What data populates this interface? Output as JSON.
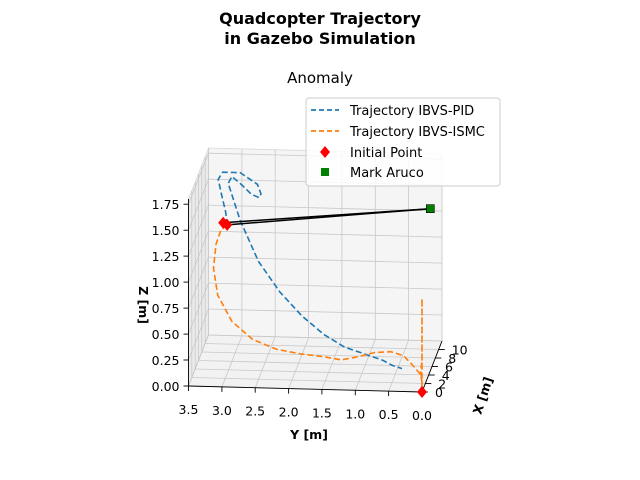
{
  "chart_data": {
    "type": "line",
    "projection": "3d",
    "suptitle_lines": [
      "Quadcopter Trajectory",
      "in Gazebo Simulation"
    ],
    "title": "Anomaly",
    "xlabel": "X [m]",
    "ylabel": "Y [m]",
    "zlabel": "Z [m]",
    "x_ticks": [
      "0",
      "2",
      "4",
      "6",
      "8",
      "10"
    ],
    "y_ticks": [
      "3.5",
      "3.0",
      "2.5",
      "2.0",
      "1.5",
      "1.0",
      "0.5",
      "0.0"
    ],
    "z_ticks": [
      "0.00",
      "0.25",
      "0.50",
      "0.75",
      "1.00",
      "1.25",
      "1.50",
      "1.75"
    ],
    "xlim": [
      0,
      12
    ],
    "ylim": [
      0,
      3.5
    ],
    "zlim": [
      0,
      1.8
    ],
    "grid": true,
    "legend_position": "upper-right",
    "colors": {
      "pid": "#1f77b4",
      "ismc": "#ff7f0e",
      "initial": "#ff0000",
      "marker": "#008000",
      "connector": "#000000"
    },
    "series": [
      {
        "name": "Trajectory IBVS-PID",
        "style": "dashed",
        "points": [
          [
            0.0,
            2.92,
            1.56
          ],
          [
            1.5,
            2.98,
            1.62
          ],
          [
            2.8,
            3.07,
            1.72
          ],
          [
            3.8,
            3.15,
            1.84
          ],
          [
            4.5,
            3.1,
            1.88
          ],
          [
            5.0,
            2.85,
            1.86
          ],
          [
            5.3,
            2.6,
            1.74
          ],
          [
            5.5,
            2.55,
            1.64
          ],
          [
            5.6,
            2.58,
            1.6
          ],
          [
            5.8,
            2.7,
            1.62
          ],
          [
            6.0,
            2.85,
            1.7
          ],
          [
            6.0,
            3.0,
            1.78
          ],
          [
            5.8,
            3.05,
            1.72
          ],
          [
            5.0,
            2.85,
            1.4
          ],
          [
            4.0,
            2.55,
            1.05
          ],
          [
            3.0,
            2.2,
            0.8
          ],
          [
            2.0,
            1.85,
            0.62
          ],
          [
            1.2,
            1.5,
            0.48
          ],
          [
            0.8,
            1.18,
            0.38
          ],
          [
            0.5,
            0.82,
            0.32
          ],
          [
            0.4,
            0.6,
            0.28
          ],
          [
            0.2,
            0.45,
            0.24
          ],
          [
            0.0,
            0.3,
            0.22
          ]
        ]
      },
      {
        "name": "Trajectory IBVS-ISMC",
        "style": "dashed",
        "points": [
          [
            0.0,
            2.92,
            1.56
          ],
          [
            0.2,
            3.02,
            1.5
          ],
          [
            0.5,
            3.1,
            1.35
          ],
          [
            1.0,
            3.15,
            1.1
          ],
          [
            1.5,
            3.1,
            0.82
          ],
          [
            2.0,
            2.9,
            0.55
          ],
          [
            2.5,
            2.6,
            0.36
          ],
          [
            3.0,
            2.25,
            0.25
          ],
          [
            3.3,
            1.9,
            0.2
          ],
          [
            3.5,
            1.55,
            0.17
          ],
          [
            3.6,
            1.3,
            0.14
          ],
          [
            3.7,
            1.05,
            0.17
          ],
          [
            3.6,
            0.8,
            0.22
          ],
          [
            3.4,
            0.55,
            0.24
          ],
          [
            3.0,
            0.35,
            0.22
          ],
          [
            2.0,
            0.2,
            0.18
          ],
          [
            1.0,
            0.05,
            0.13
          ],
          [
            0.0,
            0.0,
            0.1
          ],
          [
            0.0,
            0.02,
            0.2
          ],
          [
            0.0,
            0.0,
            0.3
          ],
          [
            0.0,
            0.0,
            0.5
          ],
          [
            0.0,
            0.0,
            0.7
          ],
          [
            0.0,
            0.0,
            0.9
          ],
          [
            0.0,
            0.0,
            0.42
          ],
          [
            0.0,
            0.0,
            0.14
          ],
          [
            0.0,
            0.0,
            0.02
          ]
        ]
      }
    ],
    "initial_points": {
      "name": "Initial Point",
      "marker": "diamond",
      "points": [
        [
          0.0,
          0.0,
          0.0
        ],
        [
          0.0,
          2.92,
          1.56
        ],
        [
          0.0,
          2.98,
          1.58
        ]
      ]
    },
    "mark": {
      "name": "Mark Aruco",
      "marker": "square",
      "points": [
        [
          5.0,
          0.0,
          1.56
        ]
      ]
    },
    "connectors": [
      {
        "from": [
          0.0,
          2.92,
          1.56
        ],
        "to": [
          5.0,
          0.0,
          1.56
        ]
      },
      {
        "from": [
          0.0,
          2.98,
          1.58
        ],
        "to": [
          5.0,
          0.0,
          1.56
        ]
      }
    ]
  }
}
